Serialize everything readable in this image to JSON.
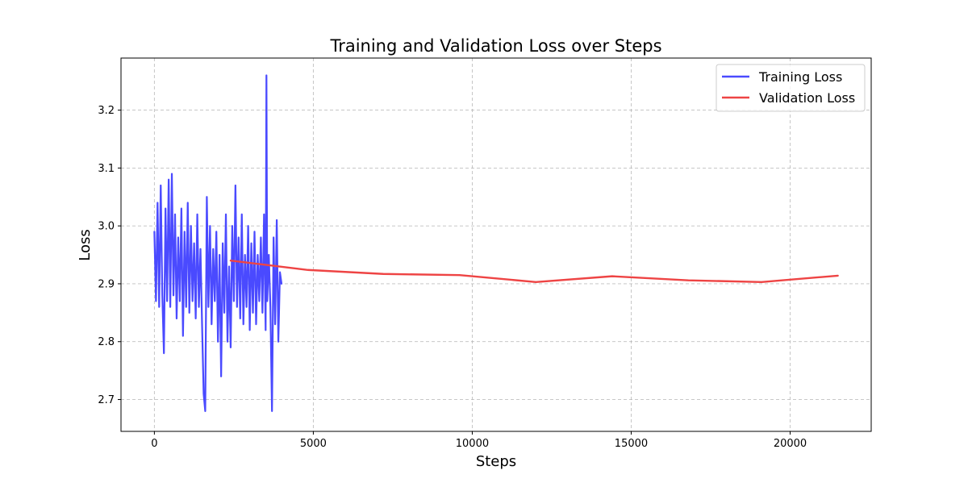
{
  "chart_data": {
    "type": "line",
    "title": "Training and Validation Loss over Steps",
    "xlabel": "Steps",
    "ylabel": "Loss",
    "xlim": [
      -1050,
      22550
    ],
    "ylim": [
      2.645,
      3.29
    ],
    "xticks": [
      0,
      5000,
      10000,
      15000,
      20000
    ],
    "xtick_labels": [
      "0",
      "5000",
      "10000",
      "15000",
      "20000"
    ],
    "yticks": [
      2.7,
      2.8,
      2.9,
      3.0,
      3.1,
      3.2
    ],
    "ytick_labels": [
      "2.7",
      "2.8",
      "2.9",
      "3.0",
      "3.1",
      "3.2"
    ],
    "grid": true,
    "legend_position": "top-right",
    "series": [
      {
        "name": "Training Loss",
        "color": "#4a4aff",
        "x": [
          0,
          50,
          100,
          150,
          200,
          250,
          300,
          350,
          400,
          450,
          500,
          550,
          600,
          650,
          700,
          750,
          800,
          850,
          900,
          950,
          1000,
          1050,
          1100,
          1150,
          1200,
          1250,
          1300,
          1350,
          1400,
          1450,
          1500,
          1550,
          1600,
          1650,
          1700,
          1750,
          1800,
          1850,
          1900,
          1950,
          2000,
          2050,
          2100,
          2150,
          2200,
          2250,
          2300,
          2350,
          2400,
          2450,
          2500,
          2550,
          2600,
          2650,
          2700,
          2750,
          2800,
          2850,
          2900,
          2950,
          3000,
          3050,
          3100,
          3150,
          3200,
          3250,
          3300,
          3350,
          3400,
          3450,
          3500,
          3525,
          3550,
          3600,
          3650,
          3700,
          3750,
          3800,
          3850,
          3900,
          3950,
          4000
        ],
        "y": [
          2.99,
          2.87,
          3.04,
          2.86,
          3.07,
          2.88,
          2.78,
          3.03,
          2.87,
          3.08,
          2.86,
          3.09,
          2.88,
          3.02,
          2.84,
          2.98,
          2.87,
          3.03,
          2.81,
          2.99,
          2.86,
          3.04,
          2.85,
          3.0,
          2.87,
          2.97,
          2.84,
          3.02,
          2.86,
          2.96,
          2.83,
          2.71,
          2.68,
          3.05,
          2.86,
          3.0,
          2.83,
          2.96,
          2.87,
          2.99,
          2.8,
          2.95,
          2.74,
          2.97,
          2.85,
          3.02,
          2.8,
          2.93,
          2.79,
          3.0,
          2.87,
          3.07,
          2.86,
          2.98,
          2.84,
          3.02,
          2.83,
          2.95,
          2.86,
          3.0,
          2.82,
          2.97,
          2.85,
          2.99,
          2.83,
          2.95,
          2.87,
          2.98,
          2.85,
          3.02,
          2.82,
          3.26,
          2.87,
          2.95,
          2.86,
          2.68,
          2.98,
          2.83,
          3.01,
          2.8,
          2.92,
          2.9
        ]
      },
      {
        "name": "Validation Loss",
        "color": "#ee4444",
        "x": [
          2400,
          4800,
          7200,
          9600,
          12000,
          14400,
          16800,
          19100,
          21500
        ],
        "y": [
          2.94,
          2.924,
          2.917,
          2.915,
          2.903,
          2.913,
          2.906,
          2.903,
          2.914
        ]
      }
    ]
  }
}
